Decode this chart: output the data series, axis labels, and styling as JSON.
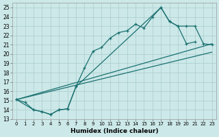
{
  "background_color": "#cce8e8",
  "grid_color": "#aacccc",
  "line_color": "#1a7070",
  "xlabel": "Humidex (Indice chaleur)",
  "xlim": [
    -0.5,
    23.5
  ],
  "ylim": [
    13,
    25.5
  ],
  "yticks": [
    13,
    14,
    15,
    16,
    17,
    18,
    19,
    20,
    21,
    22,
    23,
    24,
    25
  ],
  "xticks": [
    0,
    1,
    2,
    3,
    4,
    5,
    6,
    7,
    8,
    9,
    10,
    11,
    12,
    13,
    14,
    15,
    16,
    17,
    18,
    19,
    20,
    21,
    22,
    23
  ],
  "line1_x": [
    0,
    1,
    2,
    3,
    4,
    5,
    6,
    7,
    8,
    9,
    10,
    11,
    12,
    13,
    14,
    15,
    16,
    17,
    18,
    19,
    20,
    21
  ],
  "line1_y": [
    15.1,
    14.8,
    14.0,
    13.8,
    13.5,
    14.0,
    14.1,
    16.5,
    18.5,
    20.3,
    20.7,
    21.7,
    22.3,
    22.5,
    23.2,
    22.8,
    24.0,
    25.0,
    23.5,
    23.0,
    21.1,
    21.3
  ],
  "line2_x": [
    0,
    2,
    3,
    4,
    5,
    6,
    7,
    17,
    18,
    19,
    20,
    21,
    22,
    23
  ],
  "line2_y": [
    15.1,
    14.0,
    13.8,
    13.5,
    14.0,
    14.1,
    16.5,
    25.0,
    23.5,
    23.0,
    23.0,
    23.0,
    21.1,
    21.0
  ],
  "line3_x": [
    0,
    23
  ],
  "line3_y": [
    15.1,
    21.1
  ],
  "line4_x": [
    0,
    23
  ],
  "line4_y": [
    15.1,
    20.2
  ]
}
